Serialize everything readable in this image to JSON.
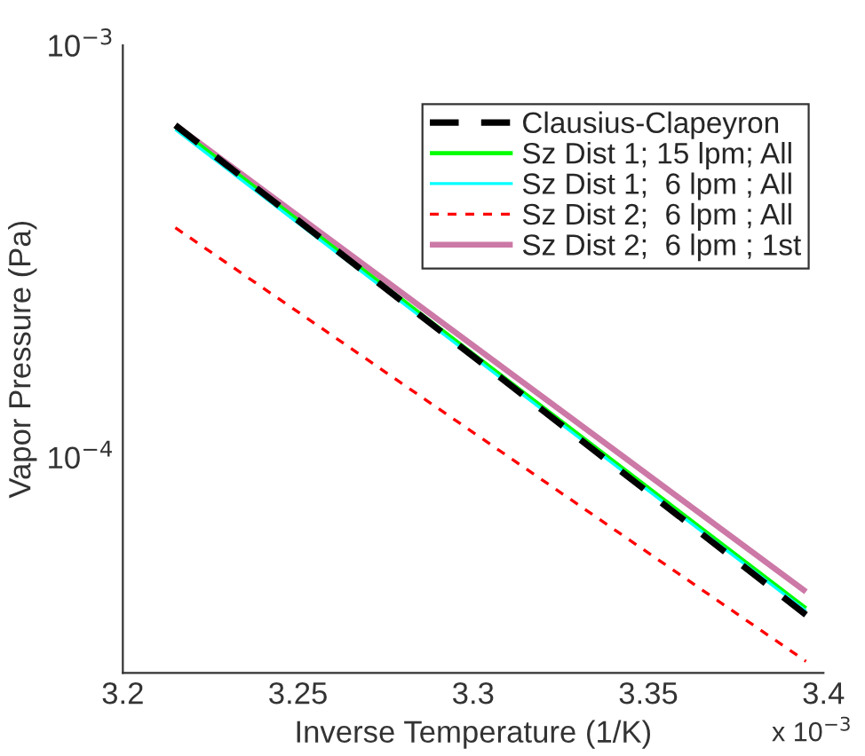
{
  "chart_data": {
    "type": "line",
    "xlabel": "Inverse Temperature (1/K)",
    "ylabel": "Vapor Pressure (Pa)",
    "log": "y",
    "xlim": [
      3.2,
      3.4
    ],
    "ylim": [
      3e-05,
      0.001
    ],
    "xticks": [
      3.2,
      3.25,
      3.3,
      3.35,
      3.4
    ],
    "yticks": [
      {
        "value": 0.0001,
        "label": "10$^{−4}$"
      },
      {
        "value": 0.001,
        "label": "10$^{−3}$"
      }
    ],
    "annotations": [
      "x 10$^{−3}$"
    ],
    "grid": false,
    "legend": "top right",
    "x": [
      3.215,
      3.395
    ],
    "series": [
      {
        "name": "Clausius-Clapeyron",
        "color": "#000000",
        "line_style": "dashed",
        "values": [
          0.00064,
          4.15e-05
        ]
      },
      {
        "name": "Sz Dist 1; 15 lpm; All",
        "color": "#00ff00",
        "line_style": "solid",
        "values": [
          0.000635,
          4.3e-05
        ]
      },
      {
        "name": "Sz Dist 1;  6 lpm ; All",
        "color": "#00ffff",
        "line_style": "solid",
        "values": [
          0.000625,
          4.24e-05
        ]
      },
      {
        "name": "Sz Dist 2;  6 lpm ; All",
        "color": "#ff0000",
        "line_style": "dotted",
        "values": [
          0.000361,
          3.2e-05
        ]
      },
      {
        "name": "Sz Dist 2;  6 lpm ; 1st",
        "color": "#cc79a7",
        "line_style": "solid",
        "values": [
          0.00064,
          4.72e-05
        ]
      }
    ]
  }
}
